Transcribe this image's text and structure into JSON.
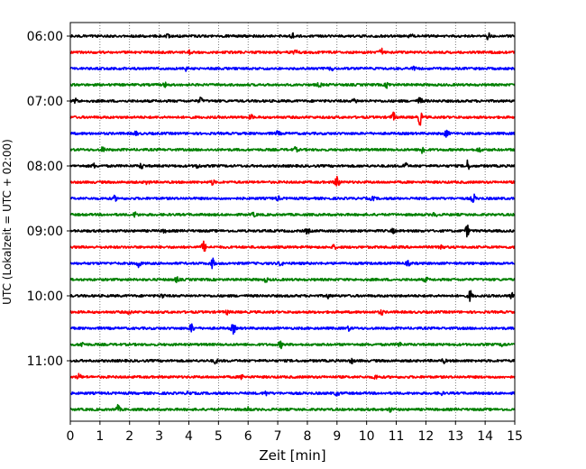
{
  "chart_data": {
    "type": "line",
    "title": "",
    "xlabel": "Zeit  [min]",
    "ylabel": "UTC (Lokalzeit = UTC + 02:00)",
    "xlim": [
      0,
      15
    ],
    "x_ticks": [
      "0",
      "1",
      "2",
      "3",
      "4",
      "5",
      "6",
      "7",
      "8",
      "9",
      "10",
      "11",
      "12",
      "13",
      "14",
      "15"
    ],
    "y_tick_labels": [
      "06:00",
      "07:00",
      "08:00",
      "09:00",
      "10:00",
      "11:00"
    ],
    "grid": "vertical-dotted",
    "trace_colors": [
      "#000000",
      "#ff0000",
      "#0000ff",
      "#008000"
    ],
    "traces": [
      {
        "start": "06:00",
        "events": [
          {
            "t": 7.5,
            "a": 1.6
          },
          {
            "t": 11.5,
            "a": 2.2
          },
          {
            "t": 14.1,
            "a": 1.8
          },
          {
            "t": 3.3,
            "a": 1.2
          }
        ]
      },
      {
        "start": "06:15",
        "events": [
          {
            "t": 10.5,
            "a": 2.4
          },
          {
            "t": 7.6,
            "a": 1.4
          },
          {
            "t": 4.0,
            "a": 1.2
          }
        ]
      },
      {
        "start": "06:30",
        "events": [
          {
            "t": 8.8,
            "a": 1.5
          },
          {
            "t": 3.9,
            "a": 1.3
          },
          {
            "t": 11.6,
            "a": 1.2
          }
        ]
      },
      {
        "start": "06:45",
        "events": [
          {
            "t": 10.7,
            "a": 2.0
          },
          {
            "t": 3.2,
            "a": 1.2
          },
          {
            "t": 8.4,
            "a": 1.3
          }
        ]
      },
      {
        "start": "07:00",
        "events": [
          {
            "t": 4.4,
            "a": 2.0
          },
          {
            "t": 0.2,
            "a": 1.6
          },
          {
            "t": 11.8,
            "a": 2.6
          },
          {
            "t": 9.6,
            "a": 1.4
          }
        ]
      },
      {
        "start": "07:15",
        "events": [
          {
            "t": 11.8,
            "a": 5.0
          },
          {
            "t": 10.9,
            "a": 3.0
          },
          {
            "t": 6.1,
            "a": 1.3
          }
        ]
      },
      {
        "start": "07:30",
        "events": [
          {
            "t": 12.7,
            "a": 2.6
          },
          {
            "t": 2.2,
            "a": 1.3
          },
          {
            "t": 7.0,
            "a": 1.3
          }
        ]
      },
      {
        "start": "07:45",
        "events": [
          {
            "t": 11.9,
            "a": 3.0
          },
          {
            "t": 1.1,
            "a": 1.6
          },
          {
            "t": 7.6,
            "a": 1.4
          },
          {
            "t": 13.8,
            "a": 1.4
          }
        ]
      },
      {
        "start": "08:00",
        "events": [
          {
            "t": 13.4,
            "a": 3.5
          },
          {
            "t": 11.3,
            "a": 2.4
          },
          {
            "t": 2.4,
            "a": 1.8
          },
          {
            "t": 4.3,
            "a": 1.5
          },
          {
            "t": 0.8,
            "a": 1.3
          }
        ]
      },
      {
        "start": "08:15",
        "events": [
          {
            "t": 9.0,
            "a": 5.5
          },
          {
            "t": 4.8,
            "a": 1.5
          },
          {
            "t": 2.6,
            "a": 1.3
          }
        ]
      },
      {
        "start": "08:30",
        "events": [
          {
            "t": 13.6,
            "a": 3.0
          },
          {
            "t": 1.5,
            "a": 1.5
          },
          {
            "t": 7.0,
            "a": 1.3
          },
          {
            "t": 10.2,
            "a": 1.3
          }
        ]
      },
      {
        "start": "08:45",
        "events": [
          {
            "t": 2.2,
            "a": 1.8
          },
          {
            "t": 6.2,
            "a": 1.3
          },
          {
            "t": 12.3,
            "a": 1.5
          }
        ]
      },
      {
        "start": "09:00",
        "events": [
          {
            "t": 13.4,
            "a": 3.8
          },
          {
            "t": 8.0,
            "a": 1.8
          },
          {
            "t": 3.2,
            "a": 1.3
          },
          {
            "t": 10.9,
            "a": 1.3
          }
        ]
      },
      {
        "start": "09:15",
        "events": [
          {
            "t": 4.5,
            "a": 3.8
          },
          {
            "t": 12.5,
            "a": 2.8
          },
          {
            "t": 8.9,
            "a": 1.3
          }
        ]
      },
      {
        "start": "09:30",
        "events": [
          {
            "t": 2.3,
            "a": 3.0
          },
          {
            "t": 4.8,
            "a": 3.2
          },
          {
            "t": 7.1,
            "a": 1.6
          },
          {
            "t": 11.4,
            "a": 1.3
          }
        ]
      },
      {
        "start": "09:45",
        "events": [
          {
            "t": 3.6,
            "a": 1.6
          },
          {
            "t": 6.6,
            "a": 1.3
          },
          {
            "t": 12.0,
            "a": 1.4
          }
        ]
      },
      {
        "start": "10:00",
        "events": [
          {
            "t": 13.5,
            "a": 3.5
          },
          {
            "t": 14.9,
            "a": 2.0
          },
          {
            "t": 3.1,
            "a": 1.5
          },
          {
            "t": 8.7,
            "a": 1.3
          }
        ]
      },
      {
        "start": "10:15",
        "events": [
          {
            "t": 10.5,
            "a": 1.6
          },
          {
            "t": 5.3,
            "a": 1.3
          },
          {
            "t": 2.0,
            "a": 1.2
          }
        ]
      },
      {
        "start": "10:30",
        "events": [
          {
            "t": 4.1,
            "a": 3.2
          },
          {
            "t": 5.5,
            "a": 3.4
          },
          {
            "t": 9.4,
            "a": 1.3
          }
        ]
      },
      {
        "start": "10:45",
        "events": [
          {
            "t": 7.1,
            "a": 2.2
          },
          {
            "t": 0.4,
            "a": 1.6
          },
          {
            "t": 11.1,
            "a": 1.3
          },
          {
            "t": 14.6,
            "a": 1.3
          }
        ]
      },
      {
        "start": "11:00",
        "events": [
          {
            "t": 4.9,
            "a": 1.6
          },
          {
            "t": 9.5,
            "a": 1.4
          },
          {
            "t": 12.6,
            "a": 1.3
          }
        ]
      },
      {
        "start": "11:15",
        "events": [
          {
            "t": 0.3,
            "a": 1.8
          },
          {
            "t": 5.8,
            "a": 1.3
          },
          {
            "t": 10.3,
            "a": 1.3
          }
        ]
      },
      {
        "start": "11:30",
        "events": [
          {
            "t": 9.0,
            "a": 1.6
          },
          {
            "t": 6.6,
            "a": 1.3
          },
          {
            "t": 12.5,
            "a": 1.4
          },
          {
            "t": 4.0,
            "a": 1.2
          }
        ]
      },
      {
        "start": "11:45",
        "events": [
          {
            "t": 1.6,
            "a": 2.6
          },
          {
            "t": 6.0,
            "a": 1.3
          },
          {
            "t": 10.8,
            "a": 1.3
          }
        ]
      }
    ]
  }
}
